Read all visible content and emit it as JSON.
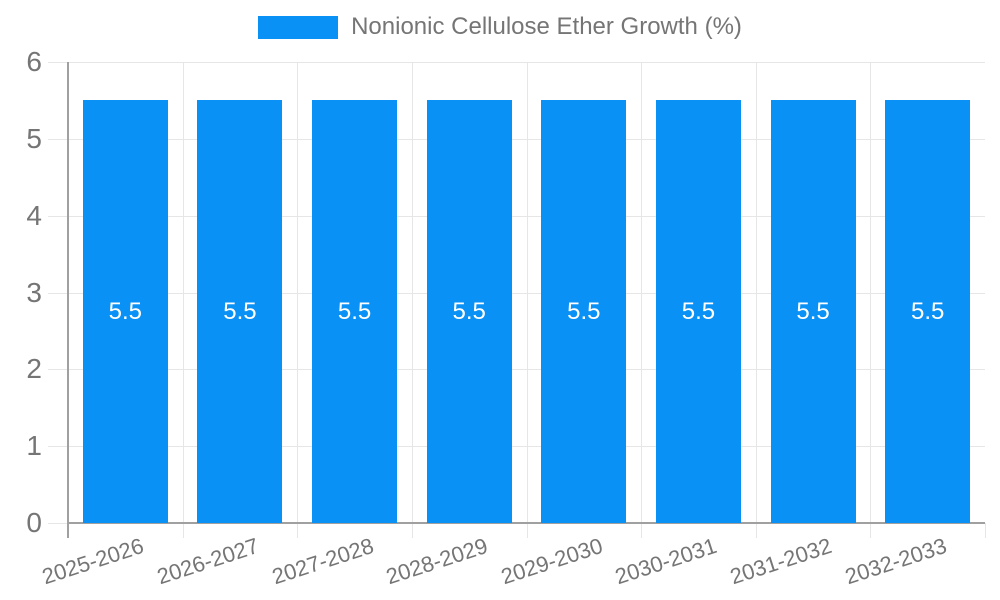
{
  "legend": {
    "label": "Nonionic Cellulose Ether Growth (%)"
  },
  "chart_data": {
    "type": "bar",
    "title": "",
    "categories": [
      "2025-2026",
      "2026-2027",
      "2027-2028",
      "2028-2029",
      "2029-2030",
      "2030-2031",
      "2031-2032",
      "2032-2033"
    ],
    "series": [
      {
        "name": "Nonionic Cellulose Ether Growth (%)",
        "values": [
          5.5,
          5.5,
          5.5,
          5.5,
          5.5,
          5.5,
          5.5,
          5.5
        ]
      }
    ],
    "bar_value_labels": [
      "5.5",
      "5.5",
      "5.5",
      "5.5",
      "5.5",
      "5.5",
      "5.5",
      "5.5"
    ],
    "xlabel": "",
    "ylabel": "",
    "ylim": [
      0,
      6
    ],
    "yticks": [
      0,
      1,
      2,
      3,
      4,
      5,
      6
    ],
    "grid": true,
    "legend_position": "top",
    "colors": {
      "bar": "#0a91f5",
      "bar_label": "#ffffff",
      "axis_text": "#757575",
      "grid_line": "#e6e6e6",
      "axis_line": "#a0a0a0"
    }
  }
}
